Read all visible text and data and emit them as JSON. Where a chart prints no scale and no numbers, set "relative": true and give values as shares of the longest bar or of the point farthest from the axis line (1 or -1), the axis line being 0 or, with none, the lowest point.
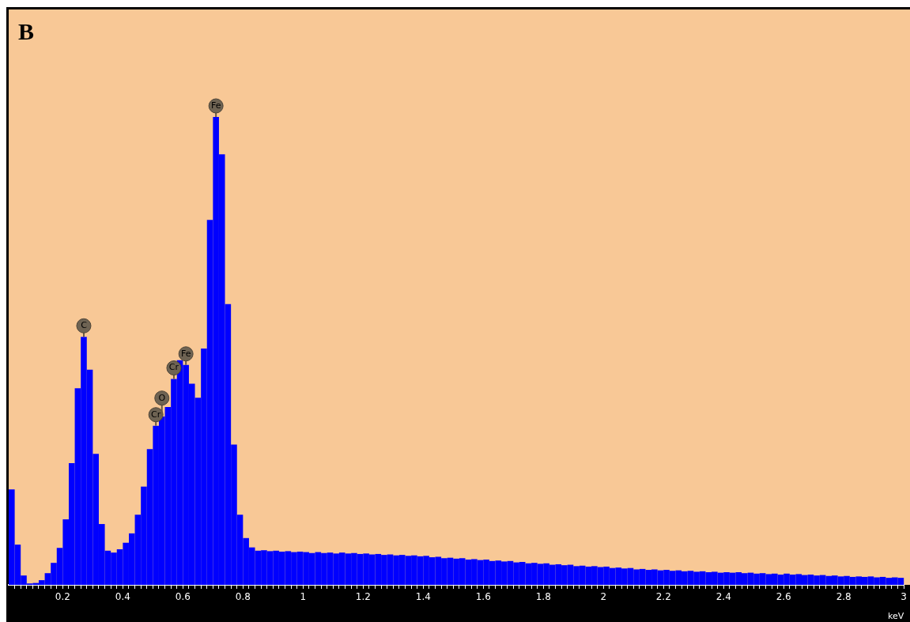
{
  "chart_data": {
    "type": "bar",
    "title": "B",
    "xlabel": "keV",
    "relative": true,
    "grid": false,
    "legend": false,
    "color": "#0000ff",
    "x": [
      0.03,
      0.05,
      0.07,
      0.09,
      0.11,
      0.13,
      0.15,
      0.17,
      0.19,
      0.21,
      0.23,
      0.25,
      0.27,
      0.29,
      0.31,
      0.33,
      0.35,
      0.37,
      0.39,
      0.41,
      0.43,
      0.45,
      0.47,
      0.49,
      0.51,
      0.53,
      0.55,
      0.57,
      0.59,
      0.61,
      0.63,
      0.65,
      0.67,
      0.69,
      0.71,
      0.73,
      0.75,
      0.77,
      0.79,
      0.81,
      0.83,
      0.85,
      0.87,
      0.89,
      0.91,
      0.93,
      0.95,
      0.97,
      0.99,
      1.01,
      1.03,
      1.05,
      1.07,
      1.09,
      1.11,
      1.13,
      1.15,
      1.17,
      1.19,
      1.21,
      1.23,
      1.25,
      1.27,
      1.29,
      1.31,
      1.33,
      1.35,
      1.37,
      1.39,
      1.41,
      1.43,
      1.45,
      1.47,
      1.49,
      1.51,
      1.53,
      1.55,
      1.57,
      1.59,
      1.61,
      1.63,
      1.65,
      1.67,
      1.69,
      1.71,
      1.73,
      1.75,
      1.77,
      1.79,
      1.81,
      1.83,
      1.85,
      1.87,
      1.89,
      1.91,
      1.93,
      1.95,
      1.97,
      1.99,
      2.01,
      2.03,
      2.05,
      2.07,
      2.09,
      2.11,
      2.13,
      2.15,
      2.17,
      2.19,
      2.21,
      2.23,
      2.25,
      2.27,
      2.29,
      2.31,
      2.33,
      2.35,
      2.37,
      2.39,
      2.41,
      2.43,
      2.45,
      2.47,
      2.49,
      2.51,
      2.53,
      2.55,
      2.57,
      2.59,
      2.61,
      2.63,
      2.65,
      2.67,
      2.69,
      2.71,
      2.73,
      2.75,
      2.77,
      2.79,
      2.81,
      2.83,
      2.85,
      2.87,
      2.89,
      2.91,
      2.93,
      2.95,
      2.97,
      2.99
    ],
    "values": [
      0.204,
      0.086,
      0.02,
      0.003,
      0.004,
      0.01,
      0.025,
      0.047,
      0.079,
      0.14,
      0.26,
      0.42,
      0.53,
      0.46,
      0.28,
      0.13,
      0.073,
      0.069,
      0.076,
      0.09,
      0.11,
      0.15,
      0.21,
      0.29,
      0.34,
      0.36,
      0.38,
      0.44,
      0.48,
      0.47,
      0.43,
      0.4,
      0.505,
      0.78,
      1,
      0.92,
      0.6,
      0.3,
      0.15,
      0.1,
      0.08,
      0.073,
      0.074,
      0.072,
      0.073,
      0.071,
      0.072,
      0.07,
      0.071,
      0.07,
      0.068,
      0.07,
      0.068,
      0.069,
      0.067,
      0.069,
      0.067,
      0.068,
      0.066,
      0.067,
      0.065,
      0.066,
      0.064,
      0.065,
      0.063,
      0.064,
      0.062,
      0.063,
      0.061,
      0.062,
      0.059,
      0.06,
      0.057,
      0.058,
      0.056,
      0.057,
      0.054,
      0.055,
      0.053,
      0.054,
      0.051,
      0.052,
      0.05,
      0.051,
      0.048,
      0.049,
      0.046,
      0.047,
      0.045,
      0.046,
      0.043,
      0.044,
      0.042,
      0.043,
      0.04,
      0.041,
      0.039,
      0.04,
      0.038,
      0.039,
      0.036,
      0.037,
      0.035,
      0.036,
      0.033,
      0.034,
      0.032,
      0.033,
      0.031,
      0.032,
      0.03,
      0.031,
      0.029,
      0.03,
      0.028,
      0.029,
      0.027,
      0.028,
      0.026,
      0.027,
      0.026,
      0.027,
      0.025,
      0.026,
      0.024,
      0.025,
      0.023,
      0.024,
      0.022,
      0.024,
      0.022,
      0.023,
      0.021,
      0.022,
      0.02,
      0.021,
      0.019,
      0.02,
      0.018,
      0.019,
      0.017,
      0.018,
      0.017,
      0.018,
      0.016,
      0.017,
      0.015,
      0.016,
      0.015
    ],
    "xlim": [
      0.02,
      3.0
    ],
    "xticks": [
      {
        "value": 0.04,
        "label": null
      },
      {
        "value": 0.06,
        "label": null
      },
      {
        "value": 0.08,
        "label": null
      },
      {
        "value": 0.1,
        "label": null
      },
      {
        "value": 0.12,
        "label": null
      },
      {
        "value": 0.14,
        "label": null
      },
      {
        "value": 0.16,
        "label": null
      },
      {
        "value": 0.18,
        "label": null
      },
      0.2,
      {
        "value": 0.22,
        "label": null
      },
      {
        "value": 0.24,
        "label": null
      },
      {
        "value": 0.26,
        "label": null
      },
      {
        "value": 0.28,
        "label": null
      },
      {
        "value": 0.3,
        "label": null
      },
      {
        "value": 0.32,
        "label": null
      },
      {
        "value": 0.34,
        "label": null
      },
      {
        "value": 0.36,
        "label": null
      },
      {
        "value": 0.38,
        "label": null
      },
      0.4,
      {
        "value": 0.42,
        "label": null
      },
      {
        "value": 0.44,
        "label": null
      },
      {
        "value": 0.46,
        "label": null
      },
      {
        "value": 0.48,
        "label": null
      },
      {
        "value": 0.5,
        "label": null
      },
      {
        "value": 0.52,
        "label": null
      },
      {
        "value": 0.54,
        "label": null
      },
      {
        "value": 0.56,
        "label": null
      },
      {
        "value": 0.58,
        "label": null
      },
      0.6,
      {
        "value": 0.62,
        "label": null
      },
      {
        "value": 0.64,
        "label": null
      },
      {
        "value": 0.66,
        "label": null
      },
      {
        "value": 0.68,
        "label": null
      },
      {
        "value": 0.7,
        "label": null
      },
      {
        "value": 0.72,
        "label": null
      },
      {
        "value": 0.74,
        "label": null
      },
      {
        "value": 0.76,
        "label": null
      },
      {
        "value": 0.78,
        "label": null
      },
      0.8,
      {
        "value": 0.82,
        "label": null
      },
      {
        "value": 0.84,
        "label": null
      },
      {
        "value": 0.86,
        "label": null
      },
      {
        "value": 0.88,
        "label": null
      },
      {
        "value": 0.9,
        "label": null
      },
      {
        "value": 0.92,
        "label": null
      },
      {
        "value": 0.94,
        "label": null
      },
      {
        "value": 0.96,
        "label": null
      },
      {
        "value": 0.98,
        "label": null
      },
      1,
      {
        "value": 1.02,
        "label": null
      },
      {
        "value": 1.04,
        "label": null
      },
      {
        "value": 1.06,
        "label": null
      },
      {
        "value": 1.08,
        "label": null
      },
      {
        "value": 1.1,
        "label": null
      },
      {
        "value": 1.12,
        "label": null
      },
      {
        "value": 1.14,
        "label": null
      },
      {
        "value": 1.16,
        "label": null
      },
      {
        "value": 1.18,
        "label": null
      },
      1.2,
      {
        "value": 1.22,
        "label": null
      },
      {
        "value": 1.24,
        "label": null
      },
      {
        "value": 1.26,
        "label": null
      },
      {
        "value": 1.28,
        "label": null
      },
      {
        "value": 1.3,
        "label": null
      },
      {
        "value": 1.32,
        "label": null
      },
      {
        "value": 1.34,
        "label": null
      },
      {
        "value": 1.36,
        "label": null
      },
      {
        "value": 1.38,
        "label": null
      },
      1.4,
      {
        "value": 1.42,
        "label": null
      },
      {
        "value": 1.44,
        "label": null
      },
      {
        "value": 1.46,
        "label": null
      },
      {
        "value": 1.48,
        "label": null
      },
      {
        "value": 1.5,
        "label": null
      },
      {
        "value": 1.52,
        "label": null
      },
      {
        "value": 1.54,
        "label": null
      },
      {
        "value": 1.56,
        "label": null
      },
      {
        "value": 1.58,
        "label": null
      },
      1.6,
      {
        "value": 1.62,
        "label": null
      },
      {
        "value": 1.64,
        "label": null
      },
      {
        "value": 1.66,
        "label": null
      },
      {
        "value": 1.68,
        "label": null
      },
      {
        "value": 1.7,
        "label": null
      },
      {
        "value": 1.72,
        "label": null
      },
      {
        "value": 1.74,
        "label": null
      },
      {
        "value": 1.76,
        "label": null
      },
      {
        "value": 1.78,
        "label": null
      },
      1.8,
      {
        "value": 1.82,
        "label": null
      },
      {
        "value": 1.84,
        "label": null
      },
      {
        "value": 1.86,
        "label": null
      },
      {
        "value": 1.88,
        "label": null
      },
      {
        "value": 1.9,
        "label": null
      },
      {
        "value": 1.92,
        "label": null
      },
      {
        "value": 1.94,
        "label": null
      },
      {
        "value": 1.96,
        "label": null
      },
      {
        "value": 1.98,
        "label": null
      },
      2,
      {
        "value": 2.02,
        "label": null
      },
      {
        "value": 2.04,
        "label": null
      },
      {
        "value": 2.06,
        "label": null
      },
      {
        "value": 2.08,
        "label": null
      },
      {
        "value": 2.1,
        "label": null
      },
      {
        "value": 2.12,
        "label": null
      },
      {
        "value": 2.14,
        "label": null
      },
      {
        "value": 2.16,
        "label": null
      },
      {
        "value": 2.18,
        "label": null
      },
      2.2,
      {
        "value": 2.22,
        "label": null
      },
      {
        "value": 2.24,
        "label": null
      },
      {
        "value": 2.26,
        "label": null
      },
      {
        "value": 2.28,
        "label": null
      },
      {
        "value": 2.3,
        "label": null
      },
      {
        "value": 2.32,
        "label": null
      },
      {
        "value": 2.34,
        "label": null
      },
      {
        "value": 2.36,
        "label": null
      },
      {
        "value": 2.38,
        "label": null
      },
      2.4,
      {
        "value": 2.42,
        "label": null
      },
      {
        "value": 2.44,
        "label": null
      },
      {
        "value": 2.46,
        "label": null
      },
      {
        "value": 2.48,
        "label": null
      },
      {
        "value": 2.5,
        "label": null
      },
      {
        "value": 2.52,
        "label": null
      },
      {
        "value": 2.54,
        "label": null
      },
      {
        "value": 2.56,
        "label": null
      },
      {
        "value": 2.58,
        "label": null
      },
      2.6,
      {
        "value": 2.62,
        "label": null
      },
      {
        "value": 2.64,
        "label": null
      },
      {
        "value": 2.66,
        "label": null
      },
      {
        "value": 2.68,
        "label": null
      },
      {
        "value": 2.7,
        "label": null
      },
      {
        "value": 2.72,
        "label": null
      },
      {
        "value": 2.74,
        "label": null
      },
      {
        "value": 2.76,
        "label": null
      },
      {
        "value": 2.78,
        "label": null
      },
      2.8,
      {
        "value": 2.82,
        "label": null
      },
      {
        "value": 2.84,
        "label": null
      },
      {
        "value": 2.86,
        "label": null
      },
      {
        "value": 2.88,
        "label": null
      },
      {
        "value": 2.9,
        "label": null
      },
      {
        "value": 2.92,
        "label": null
      },
      {
        "value": 2.94,
        "label": null
      },
      {
        "value": 2.96,
        "label": null
      },
      {
        "value": 2.98,
        "label": null
      },
      3
    ],
    "annotations": [
      {
        "text": "C",
        "x": 0.27,
        "y": 0.53
      },
      {
        "text": "Cr",
        "x": 0.51,
        "y": 0.34
      },
      {
        "text": "O",
        "x": 0.53,
        "y": 0.36
      },
      {
        "text": "Cr",
        "x": 0.57,
        "y": 0.44
      },
      {
        "text": "Fe",
        "x": 0.61,
        "y": 0.47
      },
      {
        "text": "Fe",
        "x": 0.71,
        "y": 1
      }
    ]
  }
}
